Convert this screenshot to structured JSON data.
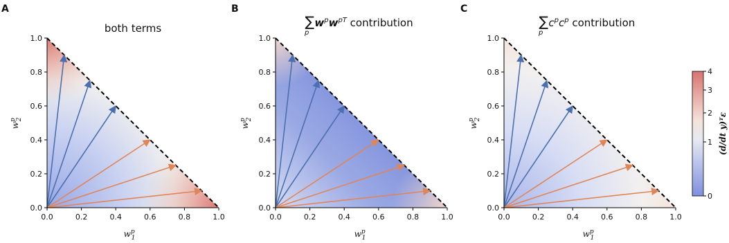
{
  "figure": {
    "colormap": {
      "low": "#7f8fe0",
      "mid": "#f2f0ef",
      "high": "#d9736e"
    },
    "blue_arrow_color": "#4a70b0",
    "orange_arrow_color": "#e08558",
    "boundary_style": "dashed black line from (0,1) to (1,0)"
  },
  "chart_data": [
    {
      "type": "vector-field",
      "panel_label": "A",
      "title": "both terms",
      "xlabel": "w",
      "xlabel_sup": "p",
      "xlabel_sub": "1",
      "ylabel": "w",
      "ylabel_sup": "p",
      "ylabel_sub": "2",
      "xlim": [
        0,
        1
      ],
      "ylim": [
        0,
        1
      ],
      "x_ticks": [
        "0.0",
        "0.2",
        "0.4",
        "0.6",
        "0.8",
        "1.0"
      ],
      "y_ticks": [
        "0.0",
        "0.2",
        "0.4",
        "0.6",
        "0.8",
        "1.0"
      ],
      "blue_arrows": [
        [
          0.1,
          0.9
        ],
        [
          0.25,
          0.75
        ],
        [
          0.4,
          0.6
        ]
      ],
      "orange_arrows": [
        [
          0.6,
          0.4
        ],
        [
          0.75,
          0.25
        ],
        [
          0.9,
          0.1
        ]
      ]
    },
    {
      "type": "vector-field",
      "panel_label": "B",
      "title_prefix": "∑",
      "title_sub": "p",
      "title_math": "w",
      "title_sup1": "p",
      "title_math2": "w",
      "title_sup2": "pT",
      "title_suffix": " contribution",
      "xlabel": "w",
      "xlabel_sup": "p",
      "xlabel_sub": "1",
      "ylabel": "w",
      "ylabel_sup": "p",
      "ylabel_sub": "2",
      "xlim": [
        0,
        1
      ],
      "ylim": [
        0,
        1
      ],
      "x_ticks": [
        "0.0",
        "0.2",
        "0.4",
        "0.6",
        "0.8",
        "1.0"
      ],
      "y_ticks": [
        "0.0",
        "0.2",
        "0.4",
        "0.6",
        "0.8",
        "1.0"
      ],
      "blue_arrows": [
        [
          0.1,
          0.9
        ],
        [
          0.25,
          0.75
        ],
        [
          0.4,
          0.6
        ]
      ],
      "orange_arrows": [
        [
          0.6,
          0.4
        ],
        [
          0.75,
          0.25
        ],
        [
          0.9,
          0.1
        ]
      ]
    },
    {
      "type": "vector-field",
      "panel_label": "C",
      "title_prefix": "∑",
      "title_sub": "p",
      "title_math": "c",
      "title_sup1": "p",
      "title_math2": "c",
      "title_sup2": "p",
      "title_suffix": " contribution",
      "xlabel": "w",
      "xlabel_sup": "p",
      "xlabel_sub": "1",
      "ylabel": "w",
      "ylabel_sup": "p",
      "ylabel_sub": "2",
      "xlim": [
        0,
        1
      ],
      "ylim": [
        0,
        1
      ],
      "x_ticks": [
        "0.0",
        "0.2",
        "0.4",
        "0.6",
        "0.8",
        "1.0"
      ],
      "y_ticks": [
        "0.0",
        "0.2",
        "0.4",
        "0.6",
        "0.8",
        "1.0"
      ],
      "blue_arrows": [
        [
          0.1,
          0.9
        ],
        [
          0.25,
          0.75
        ],
        [
          0.4,
          0.6
        ]
      ],
      "orange_arrows": [
        [
          0.6,
          0.4
        ],
        [
          0.75,
          0.25
        ],
        [
          0.9,
          0.1
        ]
      ]
    }
  ],
  "colorbar": {
    "label": "(d/dt y)ᵀε",
    "ticks": [
      "4",
      "3",
      "2",
      "1",
      "0"
    ]
  }
}
